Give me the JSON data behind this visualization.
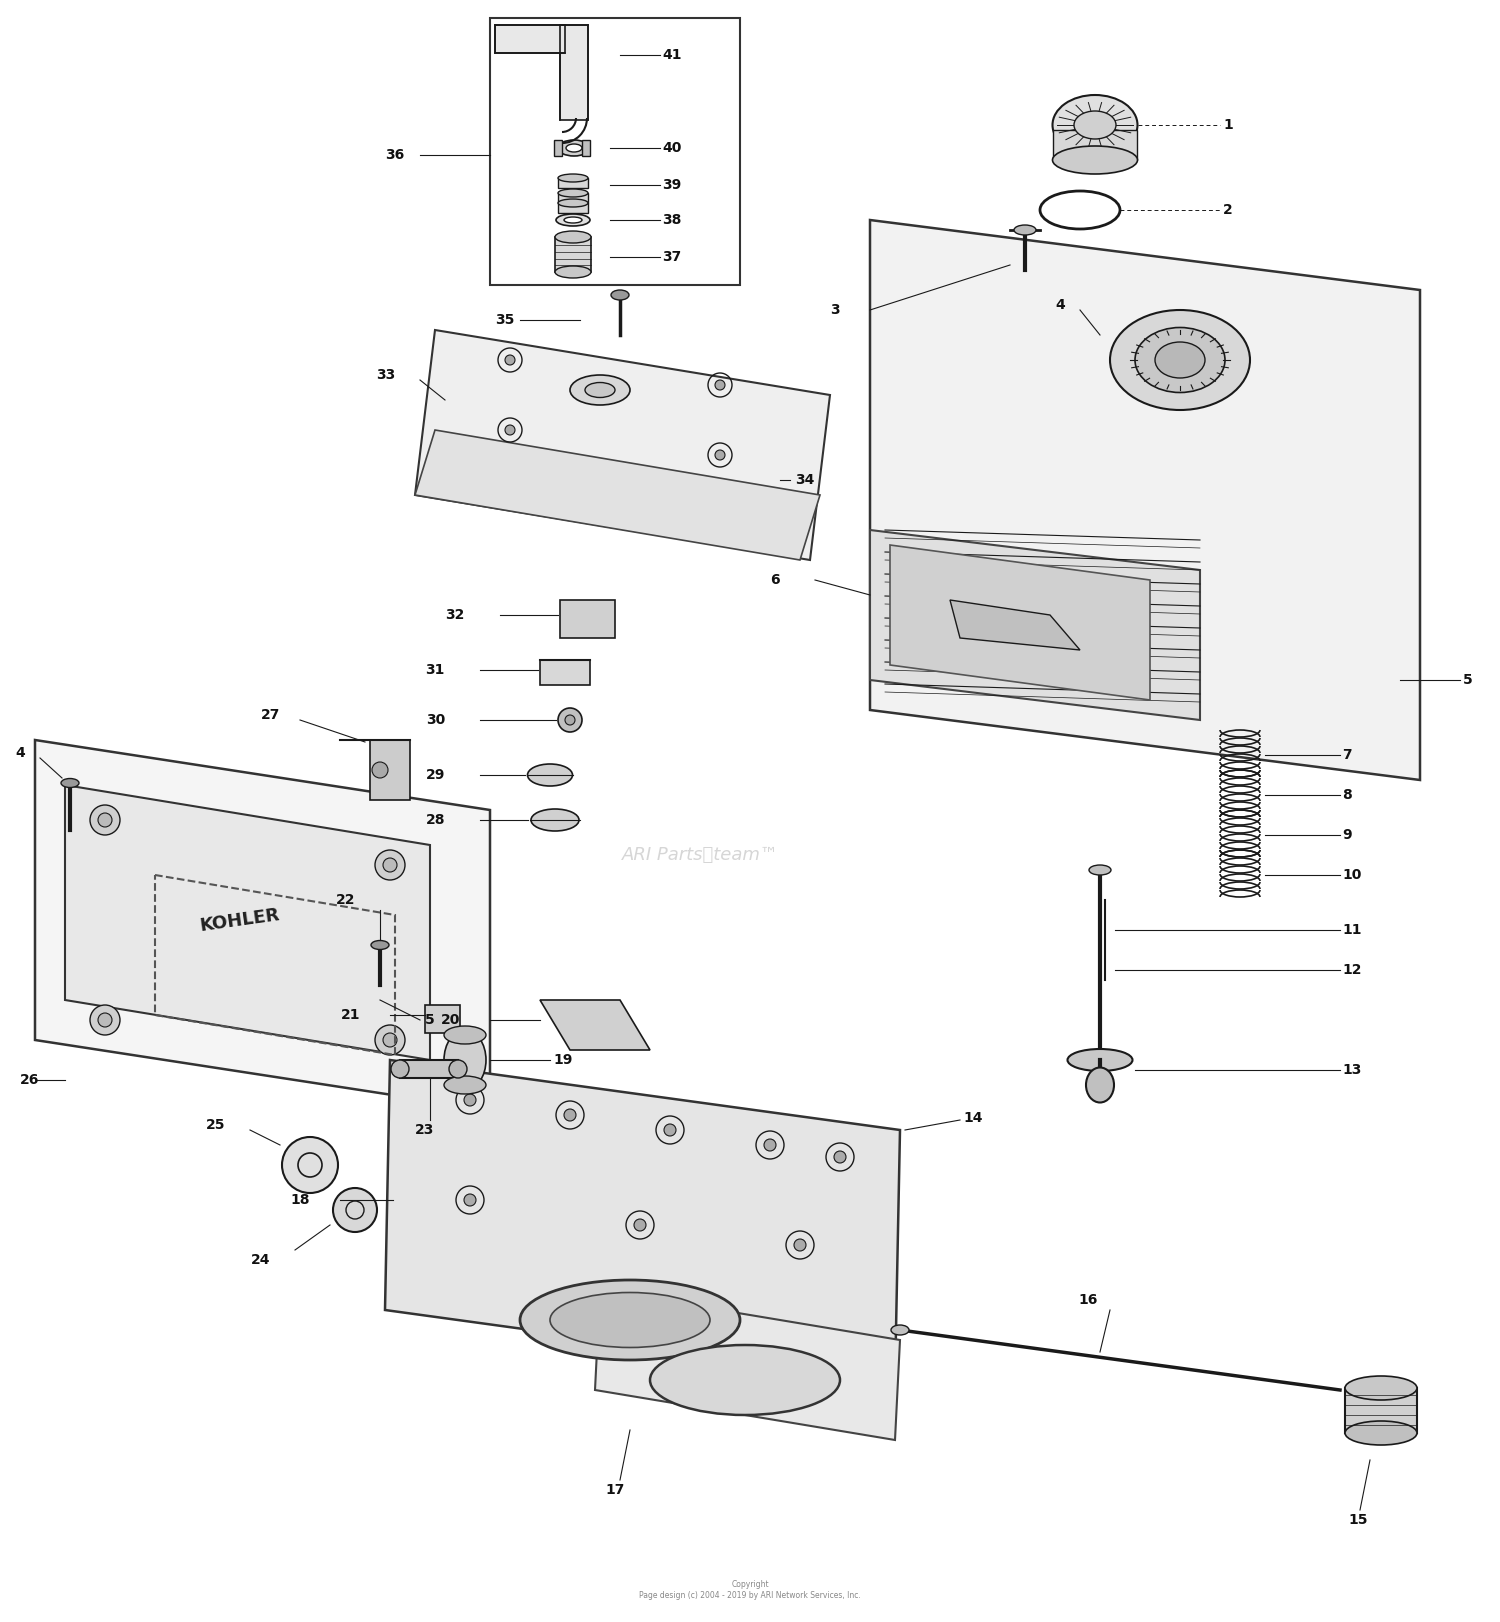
{
  "bg_color": "#ffffff",
  "fig_width": 15.0,
  "fig_height": 16.22,
  "watermark_text": "ARI PartsⓈteam™",
  "copyright": "Copyright\nPage design (c) 2004 - 2019 by ARI Network Services, Inc.",
  "line_color": "#1a1a1a",
  "text_color": "#111111",
  "label_fontsize": 10,
  "label_fontweight": "bold"
}
